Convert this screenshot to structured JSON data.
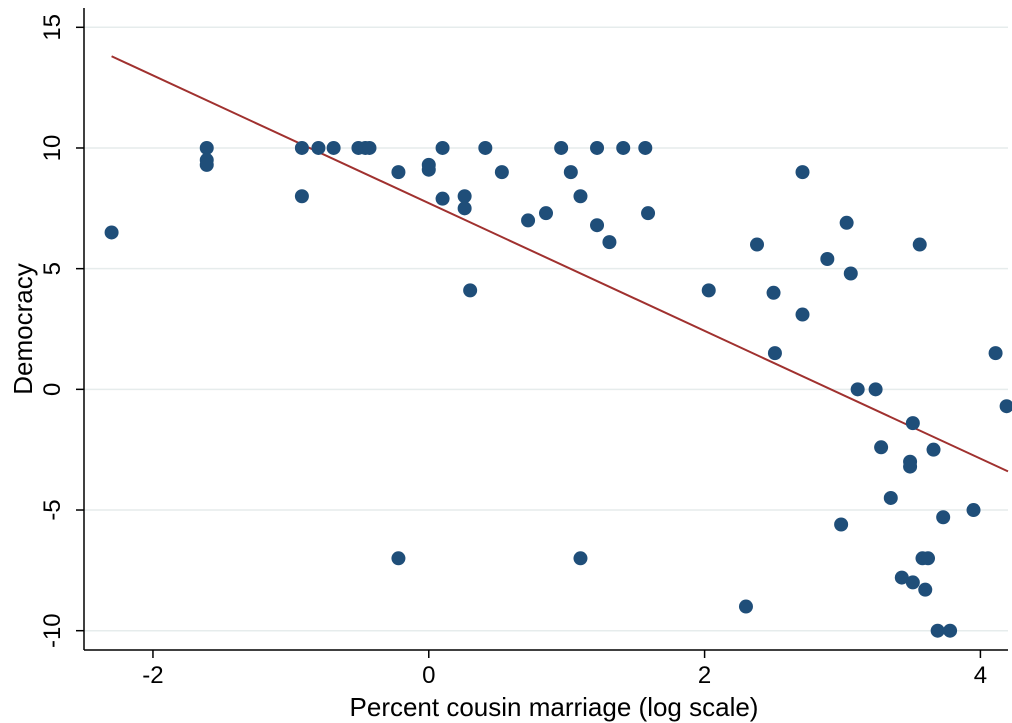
{
  "chart_data": {
    "type": "scatter",
    "title": "",
    "xlabel": "Percent cousin marriage (log scale)",
    "ylabel": "Democracy",
    "xlim": [
      -2.5,
      4.2
    ],
    "ylim": [
      -10.8,
      15.8
    ],
    "xticks": [
      -2,
      0,
      2,
      4
    ],
    "yticks": [
      -10,
      -5,
      0,
      5,
      10,
      15
    ],
    "grid": true,
    "colors": {
      "points": "#1f4e79",
      "fit_line": "#a0312f",
      "grid": "#e6ecec",
      "axis": "#000000"
    },
    "fit_line": {
      "x": [
        -2.3,
        4.2
      ],
      "y": [
        13.8,
        -3.4
      ]
    },
    "points": [
      {
        "x": -2.3,
        "y": 6.5
      },
      {
        "x": -1.61,
        "y": 10
      },
      {
        "x": -1.61,
        "y": 9.5
      },
      {
        "x": -1.61,
        "y": 9.3
      },
      {
        "x": -0.92,
        "y": 10
      },
      {
        "x": -0.92,
        "y": 8
      },
      {
        "x": -0.8,
        "y": 10
      },
      {
        "x": -0.69,
        "y": 10
      },
      {
        "x": -0.51,
        "y": 10
      },
      {
        "x": -0.46,
        "y": 10
      },
      {
        "x": -0.43,
        "y": 10
      },
      {
        "x": -0.22,
        "y": 9
      },
      {
        "x": -0.22,
        "y": -7
      },
      {
        "x": 0.0,
        "y": 9.3
      },
      {
        "x": 0.0,
        "y": 9.1
      },
      {
        "x": 0.1,
        "y": 10
      },
      {
        "x": 0.1,
        "y": 7.9
      },
      {
        "x": 0.26,
        "y": 8
      },
      {
        "x": 0.26,
        "y": 7.5
      },
      {
        "x": 0.3,
        "y": 4.1
      },
      {
        "x": 0.41,
        "y": 10
      },
      {
        "x": 0.53,
        "y": 9
      },
      {
        "x": 0.72,
        "y": 7
      },
      {
        "x": 0.85,
        "y": 7.3
      },
      {
        "x": 0.96,
        "y": 10
      },
      {
        "x": 1.03,
        "y": 9
      },
      {
        "x": 1.1,
        "y": 8
      },
      {
        "x": 1.1,
        "y": -7
      },
      {
        "x": 1.22,
        "y": 10
      },
      {
        "x": 1.22,
        "y": 6.8
      },
      {
        "x": 1.31,
        "y": 6.1
      },
      {
        "x": 1.41,
        "y": 10
      },
      {
        "x": 1.57,
        "y": 10
      },
      {
        "x": 1.59,
        "y": 7.3
      },
      {
        "x": 2.03,
        "y": 4.1
      },
      {
        "x": 2.3,
        "y": -9
      },
      {
        "x": 2.38,
        "y": 6
      },
      {
        "x": 2.5,
        "y": 4
      },
      {
        "x": 2.51,
        "y": 1.5
      },
      {
        "x": 2.71,
        "y": 9
      },
      {
        "x": 2.71,
        "y": 3.1
      },
      {
        "x": 2.89,
        "y": 5.4
      },
      {
        "x": 2.99,
        "y": -5.6
      },
      {
        "x": 3.03,
        "y": 6.9
      },
      {
        "x": 3.06,
        "y": 4.8
      },
      {
        "x": 3.11,
        "y": 0
      },
      {
        "x": 3.24,
        "y": 0
      },
      {
        "x": 3.28,
        "y": -2.4
      },
      {
        "x": 3.35,
        "y": -4.5
      },
      {
        "x": 3.43,
        "y": -7.8
      },
      {
        "x": 3.49,
        "y": -3
      },
      {
        "x": 3.49,
        "y": -3.2
      },
      {
        "x": 3.51,
        "y": -1.4
      },
      {
        "x": 3.51,
        "y": -8
      },
      {
        "x": 3.56,
        "y": 6
      },
      {
        "x": 3.58,
        "y": -7
      },
      {
        "x": 3.6,
        "y": -8.3
      },
      {
        "x": 3.62,
        "y": -7
      },
      {
        "x": 3.66,
        "y": -2.5
      },
      {
        "x": 3.69,
        "y": -10
      },
      {
        "x": 3.73,
        "y": -5.3
      },
      {
        "x": 3.78,
        "y": -10
      },
      {
        "x": 3.95,
        "y": -5
      },
      {
        "x": 4.11,
        "y": 1.5
      },
      {
        "x": 4.19,
        "y": -0.7
      }
    ]
  }
}
